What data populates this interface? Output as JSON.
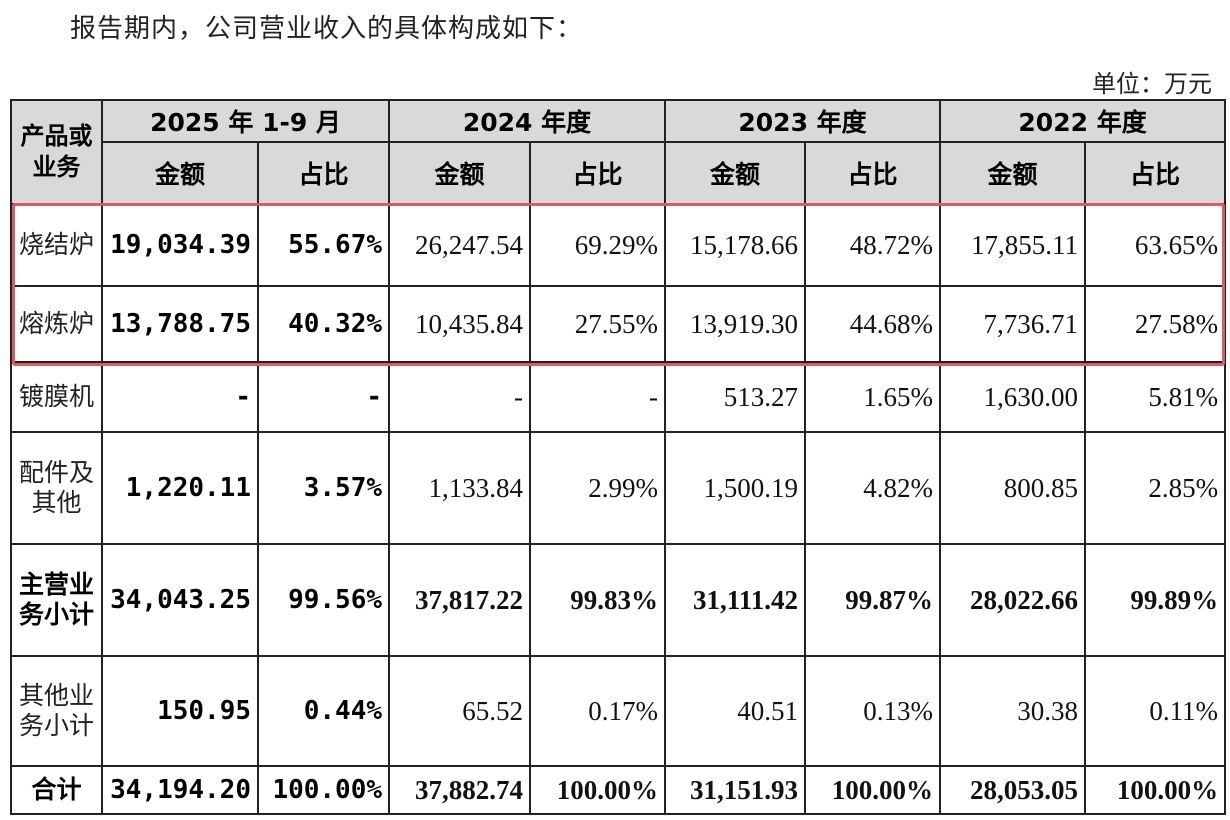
{
  "intro": "报告期内，公司营业收入的具体构成如下：",
  "unit": "单位：万元",
  "header": {
    "category": "产品或业务",
    "periods": [
      "2025 年 1-9 月",
      "2024 年度",
      "2023 年度",
      "2022 年度"
    ],
    "amount": "金额",
    "ratio": "占比"
  },
  "rows": [
    {
      "name": "烧结炉",
      "values": [
        "19,034.39",
        "55.67%",
        "26,247.54",
        "69.29%",
        "15,178.66",
        "48.72%",
        "17,855.11",
        "63.65%"
      ]
    },
    {
      "name": "熔炼炉",
      "values": [
        "13,788.75",
        "40.32%",
        "10,435.84",
        "27.55%",
        "13,919.30",
        "44.68%",
        "7,736.71",
        "27.58%"
      ]
    },
    {
      "name": "镀膜机",
      "values": [
        "-",
        "-",
        "-",
        "-",
        "513.27",
        "1.65%",
        "1,630.00",
        "5.81%"
      ]
    },
    {
      "name": "配件及其他",
      "values": [
        "1,220.11",
        "3.57%",
        "1,133.84",
        "2.99%",
        "1,500.19",
        "4.82%",
        "800.85",
        "2.85%"
      ]
    },
    {
      "name": "主营业务小计",
      "values": [
        "34,043.25",
        "99.56%",
        "37,817.22",
        "99.83%",
        "31,111.42",
        "99.87%",
        "28,022.66",
        "99.89%"
      ]
    },
    {
      "name": "其他业务小计",
      "values": [
        "150.95",
        "0.44%",
        "65.52",
        "0.17%",
        "40.51",
        "0.13%",
        "30.38",
        "0.11%"
      ]
    },
    {
      "name": "合计",
      "values": [
        "34,194.20",
        "100.00%",
        "37,882.74",
        "100.00%",
        "31,151.93",
        "100.00%",
        "28,053.05",
        "100.00%"
      ]
    }
  ],
  "highlight_color": "#e05a61"
}
